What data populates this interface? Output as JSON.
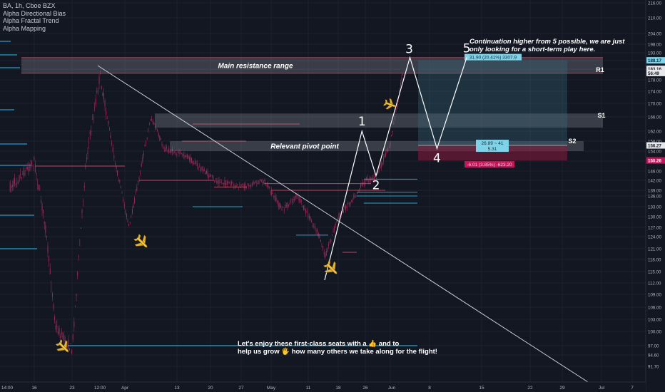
{
  "header": {
    "symbol": "BA, 1h, Cboe BZX",
    "indicators": [
      "Alpha Directional Bias",
      "Alpha Fractal Trend",
      "Alpha Mapping"
    ]
  },
  "colors": {
    "background": "#131722",
    "candle_body": "#9c2b58",
    "grid": "#1e2230",
    "zone_fill": "#8a8e99",
    "trendline": "#c8ccd4",
    "wave_line": "#ffffff",
    "level_red": "#c2445f",
    "level_cyan": "#21a4cf",
    "long_profit_fill": "#3b6c80",
    "long_loss_fill": "#8a1a3d",
    "label_cyan": "#7fd3e8",
    "label_red": "#c2185b"
  },
  "chart_data": {
    "type": "line",
    "title": "",
    "x_ticks": [
      "14:00",
      "16",
      "23",
      "12:00",
      "Apr",
      "13",
      "20",
      "27",
      "May",
      "11",
      "18",
      "26",
      "Jun",
      "8",
      "15",
      "22",
      "29",
      "Jul",
      "7"
    ],
    "y_axis": {
      "ticks": [
        91.7,
        94.6,
        97.0,
        100.0,
        103.0,
        106.0,
        109.0,
        112.0,
        115.0,
        118.0,
        121.0,
        124.0,
        127.0,
        130.0,
        133.0,
        136.0,
        139.0,
        142.0,
        146.0,
        150.0,
        154.0,
        158.0,
        162.0,
        166.0,
        170.0,
        174.0,
        178.0,
        183.0,
        188.0,
        193.0,
        198.0,
        204.0,
        210.0,
        216.0
      ],
      "tick_labels": [
        "91.70",
        "94.60",
        "97.00",
        "100.00",
        "103.00",
        "106.00",
        "109.00",
        "112.00",
        "115.00",
        "118.00",
        "121.00",
        "124.00",
        "127.00",
        "130.00",
        "133.00",
        "136.00",
        "139.00",
        "142.00",
        "146.00",
        "150.00",
        "154.00",
        "158.00",
        "162.00",
        "166.00",
        "170.00",
        "174.00",
        "178.00",
        "183.00",
        "188.00",
        "193.00",
        "198.00",
        "204.00",
        "210.00",
        "216.00"
      ],
      "badges": [
        {
          "text": "188.17",
          "value": 188.17,
          "style": "blue"
        },
        {
          "text": "183.16",
          "value": 183.16,
          "style": "dark"
        },
        {
          "text": "56:49",
          "value": 181.2,
          "style": "dark"
        },
        {
          "text": "156.27",
          "value": 156.27,
          "style": "dark"
        },
        {
          "text": "150.26",
          "value": 150.26,
          "style": "red"
        }
      ]
    },
    "price_path": [
      {
        "date": "Mar 12",
        "price": 140
      },
      {
        "date": "Mar 16",
        "price": 150
      },
      {
        "date": "Mar 18",
        "price": 128
      },
      {
        "date": "Mar 20",
        "price": 101
      },
      {
        "date": "Mar 23",
        "price": 96
      },
      {
        "date": "Mar 25",
        "price": 150
      },
      {
        "date": "Mar 27",
        "price": 180
      },
      {
        "date": "Mar 30",
        "price": 150
      },
      {
        "date": "Apr 2",
        "price": 127
      },
      {
        "date": "Apr 7",
        "price": 166
      },
      {
        "date": "Apr 10",
        "price": 155
      },
      {
        "date": "Apr 15",
        "price": 152
      },
      {
        "date": "Apr 21",
        "price": 142
      },
      {
        "date": "Apr 27",
        "price": 140
      },
      {
        "date": "Apr 30",
        "price": 142
      },
      {
        "date": "May 4",
        "price": 132
      },
      {
        "date": "May 8",
        "price": 136
      },
      {
        "date": "May 13",
        "price": 126
      },
      {
        "date": "May 15",
        "price": 119
      },
      {
        "date": "May 18",
        "price": 130
      },
      {
        "date": "May 22",
        "price": 135
      },
      {
        "date": "May 26",
        "price": 142
      },
      {
        "date": "May 29",
        "price": 143
      },
      {
        "date": "Jun 2",
        "price": 157
      },
      {
        "date": "Jun 4",
        "price": 183
      }
    ],
    "zones": [
      {
        "label": "Main resistance range",
        "high": 190,
        "low": 181
      },
      {
        "label": "Relevant pivot point",
        "high": 158,
        "low": 154
      },
      {
        "label": "",
        "high": 167,
        "low": 163
      }
    ],
    "levels": [
      {
        "label": "R1",
        "value": 183
      },
      {
        "label": "S1",
        "value": 166
      },
      {
        "label": "S2",
        "value": 158
      }
    ],
    "elliott_waves": [
      {
        "label": "1",
        "date": "May 25",
        "price": 162
      },
      {
        "label": "2",
        "date": "May 29",
        "price": 144
      },
      {
        "label": "3",
        "date": "Jun 5",
        "price": 190
      },
      {
        "label": "4",
        "date": "Jun 9",
        "price": 155
      },
      {
        "label": "5",
        "date": "Jun 13",
        "price": 190
      }
    ],
    "long_position": {
      "entry": 156.27,
      "target": 188.17,
      "stop": 150.26,
      "target_label": "31.90 (20.41%) 3307.9",
      "center_label": [
        "26.89 ~ 41",
        "5.31"
      ],
      "stop_label": "-6.01 (3.85%) -623.20"
    },
    "annotations": [
      {
        "id": "continuation",
        "text": "Continuation higher from 5 possible, we are just\nonly looking for a short-term play here."
      },
      {
        "id": "footer",
        "text": "Let's enjoy these first-class seats with a 👍 and to\nhelp us grow 🖐 how many others we take along for the flight!"
      }
    ]
  }
}
